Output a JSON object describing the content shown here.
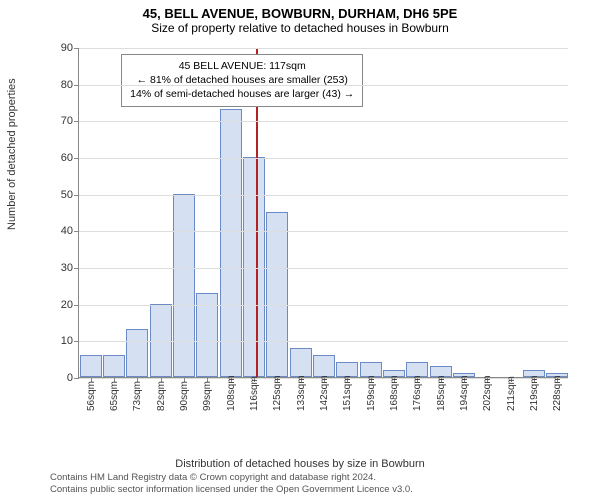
{
  "title": "45, BELL AVENUE, BOWBURN, DURHAM, DH6 5PE",
  "subtitle": "Size of property relative to detached houses in Bowburn",
  "y_label": "Number of detached properties",
  "x_label": "Distribution of detached houses by size in Bowburn",
  "footer_l1": "Contains HM Land Registry data © Crown copyright and database right 2024.",
  "footer_l2": "Contains public sector information licensed under the Open Government Licence v3.0.",
  "callout": {
    "l1": "45 BELL AVENUE: 117sqm",
    "l2": "← 81% of detached houses are smaller (253)",
    "l3": "14% of semi-detached houses are larger (43) →"
  },
  "colors": {
    "bar_fill": "#d5e0f2",
    "bar_stroke": "#6a8bc5",
    "grid": "#dddddd",
    "axis": "#888888",
    "marker_line": "#b22222",
    "text": "#333333",
    "bg": "#ffffff"
  },
  "chart": {
    "y_max": 90,
    "y_ticks": [
      0,
      10,
      20,
      30,
      40,
      50,
      60,
      70,
      80,
      90
    ],
    "x_unit": "sqm",
    "x_start": 56,
    "x_step": 8.6,
    "x_ticks": [
      56,
      65,
      73,
      82,
      90,
      99,
      108,
      116,
      125,
      133,
      142,
      151,
      159,
      168,
      176,
      185,
      194,
      202,
      211,
      219,
      228
    ],
    "values": [
      6,
      6,
      13,
      20,
      50,
      23,
      73,
      60,
      45,
      8,
      6,
      4,
      4,
      2,
      4,
      3,
      1,
      0,
      0,
      2,
      1
    ],
    "marker_x": 117,
    "fontsize_title": 13,
    "fontsize_subtitle": 12,
    "fontsize_axis_label": 11,
    "fontsize_tick": 11,
    "fontsize_xtick": 10,
    "fontsize_callout": 10.5,
    "bar_width_ratio": 0.95
  }
}
